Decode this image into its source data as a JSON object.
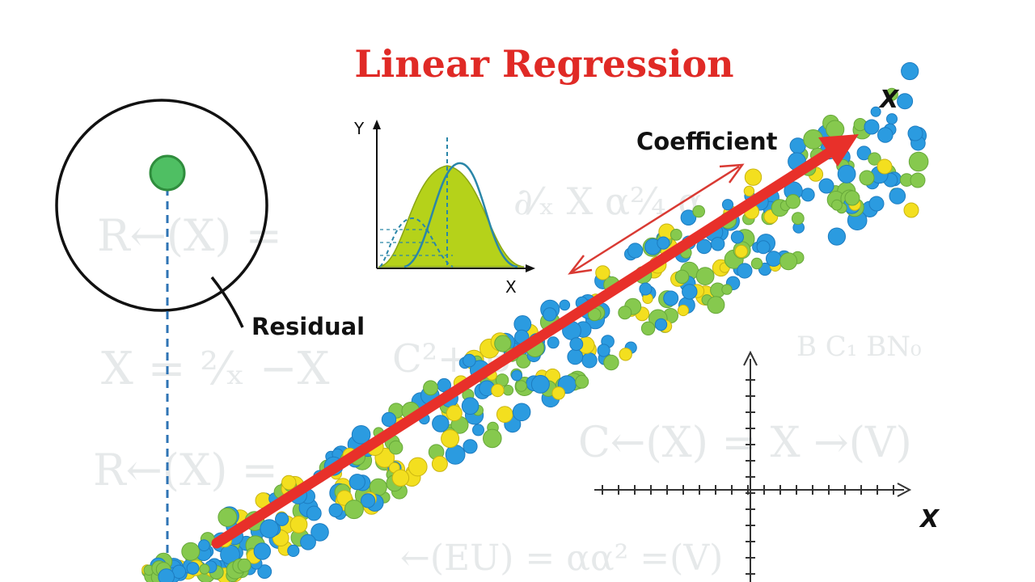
{
  "title": "Linear Regression",
  "labels": {
    "coefficient": "Coefficient",
    "residual": "Residual",
    "main_axis_x": "X",
    "lower_axis_x": "X",
    "inset_axis_y": "Y",
    "inset_axis_x": "X"
  },
  "background_formulas": [
    "R←(X) =",
    "X = ²⁄ₓ −X",
    "R←(X) =",
    "∂⁄ₓ X α²⁄₄ α",
    "C²+ B",
    "C←(X) = X →(V)",
    "←(EU) = αα² =(V)",
    "B C₁ BN₀"
  ],
  "colors": {
    "title": "#e02a26",
    "regression_line": "#e8302a",
    "coefficient_arrow": "#d93a33",
    "residual_dash": "#2f74b5",
    "point_blue": "#2b9be0",
    "point_green": "#86c94e",
    "point_yellow": "#f3df1f",
    "inset_fill": "#b5d21a",
    "inset_curve": "#2a86a8"
  },
  "icons": {
    "residual_point": "green-dot",
    "regression_arrow": "arrow-right-up-icon",
    "coefficient_arrow": "double-arrow-icon"
  }
}
